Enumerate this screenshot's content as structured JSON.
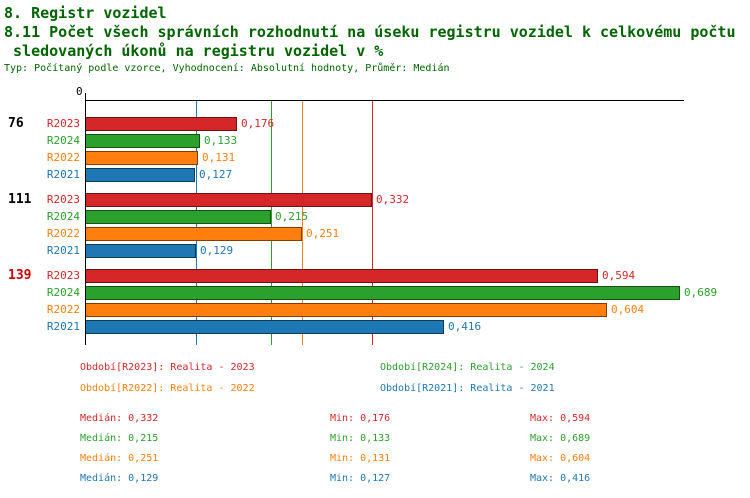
{
  "header": {
    "section_title": "8. Registr vozidel",
    "indicator_title_line1": "8.11 Počet všech správních rozhodnutí na úseku registru vozidel k celkovému počtu",
    "indicator_title_line2": " sledovaných úkonů na registru vozidel v %",
    "meta": "Typ: Počítaný podle vzorce, Vyhodnocení: Absolutní hodnoty, Průměr: Medián"
  },
  "colors": {
    "R2023": "#d62728",
    "R2024": "#2ca02c",
    "R2022": "#ff7f0e",
    "R2021": "#1f77b4",
    "highlight": "#cc0000",
    "title": "#006400",
    "axis": "#000000"
  },
  "chart_data": {
    "type": "bar",
    "orientation": "horizontal",
    "title": "8.11 Počet všech správních rozhodnutí na úseku registru vozidel k celkovému počtu sledovaných úkonů na registru vozidel v %",
    "axis_zero_label": "0",
    "xlim": [
      0,
      0.72
    ],
    "series_order": [
      "R2023",
      "R2024",
      "R2022",
      "R2021"
    ],
    "groups": [
      {
        "label": "76",
        "highlight": false,
        "bars": [
          {
            "series": "R2023",
            "value": 0.176,
            "label": "0,176"
          },
          {
            "series": "R2024",
            "value": 0.133,
            "label": "0,133"
          },
          {
            "series": "R2022",
            "value": 0.131,
            "label": "0,131"
          },
          {
            "series": "R2021",
            "value": 0.127,
            "label": "0,127"
          }
        ]
      },
      {
        "label": "111",
        "highlight": false,
        "bars": [
          {
            "series": "R2023",
            "value": 0.332,
            "label": "0,332"
          },
          {
            "series": "R2024",
            "value": 0.215,
            "label": "0,215"
          },
          {
            "series": "R2022",
            "value": 0.251,
            "label": "0,251"
          },
          {
            "series": "R2021",
            "value": 0.129,
            "label": "0,129"
          }
        ]
      },
      {
        "label": "139",
        "highlight": true,
        "bars": [
          {
            "series": "R2023",
            "value": 0.594,
            "label": "0,594"
          },
          {
            "series": "R2024",
            "value": 0.689,
            "label": "0,689"
          },
          {
            "series": "R2022",
            "value": 0.604,
            "label": "0,604"
          },
          {
            "series": "R2021",
            "value": 0.416,
            "label": "0,416"
          }
        ]
      }
    ],
    "median_lines": {
      "R2023": 0.332,
      "R2024": 0.215,
      "R2022": 0.251,
      "R2021": 0.129
    },
    "legend": [
      {
        "series": "R2023",
        "text": "Období[R2023]: Realita - 2023",
        "col": 0,
        "row": 0
      },
      {
        "series": "R2024",
        "text": "Období[R2024]: Realita - 2024",
        "col": 1,
        "row": 0
      },
      {
        "series": "R2022",
        "text": "Období[R2022]: Realita - 2022",
        "col": 0,
        "row": 1
      },
      {
        "series": "R2021",
        "text": "Období[R2021]: Realita - 2021",
        "col": 1,
        "row": 1
      }
    ],
    "stats": [
      {
        "series": "R2023",
        "median": "Medián: 0,332",
        "min": "Min: 0,176",
        "max": "Max: 0,594"
      },
      {
        "series": "R2024",
        "median": "Medián: 0,215",
        "min": "Min: 0,133",
        "max": "Max: 0,689"
      },
      {
        "series": "R2022",
        "median": "Medián: 0,251",
        "min": "Min: 0,131",
        "max": "Max: 0,604"
      },
      {
        "series": "R2021",
        "median": "Medián: 0,129",
        "min": "Min: 0,127",
        "max": "Max: 0,416"
      }
    ]
  }
}
